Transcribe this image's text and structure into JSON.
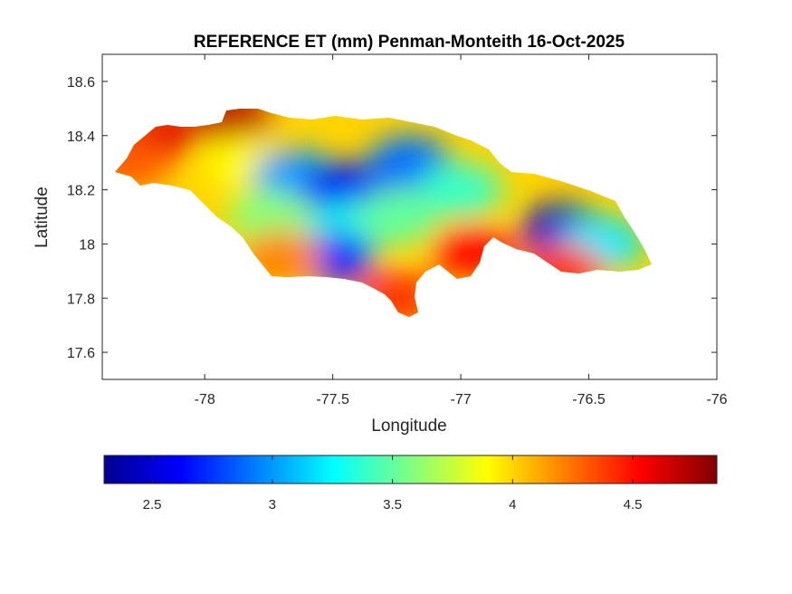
{
  "chart_data": {
    "type": "heatmap",
    "title": "REFERENCE ET (mm) Penman-Monteith 16-Oct-2025",
    "xlabel": "Longitude",
    "ylabel": "Latitude",
    "xlim": [
      -78.4,
      -76
    ],
    "ylim": [
      17.5,
      18.7
    ],
    "xticks": [
      -78,
      -77.5,
      -77,
      -76.5,
      -76
    ],
    "xtick_labels": [
      "-78",
      "-77.5",
      "-77",
      "-76.5",
      "-76"
    ],
    "yticks": [
      17.6,
      17.8,
      18,
      18.2,
      18.4,
      18.6
    ],
    "ytick_labels": [
      "17.6",
      "17.8",
      "18",
      "18.2",
      "18.4",
      "18.6"
    ],
    "colorbar": {
      "orientation": "horizontal",
      "placement": "below",
      "colormap": "jet",
      "range": [
        2.3,
        4.85
      ],
      "ticks": [
        2.5,
        3,
        3.5,
        4,
        4.5
      ],
      "tick_labels": [
        "2.5",
        "3",
        "3.5",
        "4",
        "4.5"
      ]
    },
    "regions": [
      {
        "lon": -78.2,
        "lat": 18.4,
        "value": 4.6
      },
      {
        "lon": -77.9,
        "lat": 18.47,
        "value": 4.7
      },
      {
        "lon": -77.85,
        "lat": 18.3,
        "value": 3.9
      },
      {
        "lon": -77.65,
        "lat": 18.25,
        "value": 3.0
      },
      {
        "lon": -77.75,
        "lat": 18.1,
        "value": 3.6
      },
      {
        "lon": -77.45,
        "lat": 18.2,
        "value": 2.6
      },
      {
        "lon": -77.45,
        "lat": 18.05,
        "value": 3.3
      },
      {
        "lon": -77.5,
        "lat": 17.95,
        "value": 2.7
      },
      {
        "lon": -77.2,
        "lat": 18.3,
        "value": 2.9
      },
      {
        "lon": -77.25,
        "lat": 18.1,
        "value": 3.5
      },
      {
        "lon": -77.0,
        "lat": 18.2,
        "value": 3.4
      },
      {
        "lon": -76.95,
        "lat": 17.97,
        "value": 4.5
      },
      {
        "lon": -76.6,
        "lat": 18.05,
        "value": 2.5
      },
      {
        "lon": -76.45,
        "lat": 18.0,
        "value": 3.2
      },
      {
        "lon": -76.6,
        "lat": 17.9,
        "value": 4.4
      },
      {
        "lon": -77.25,
        "lat": 17.8,
        "value": 4.4
      },
      {
        "lon": -77.7,
        "lat": 17.95,
        "value": 4.2
      },
      {
        "lon": -78.3,
        "lat": 18.3,
        "value": 4.3
      }
    ]
  }
}
